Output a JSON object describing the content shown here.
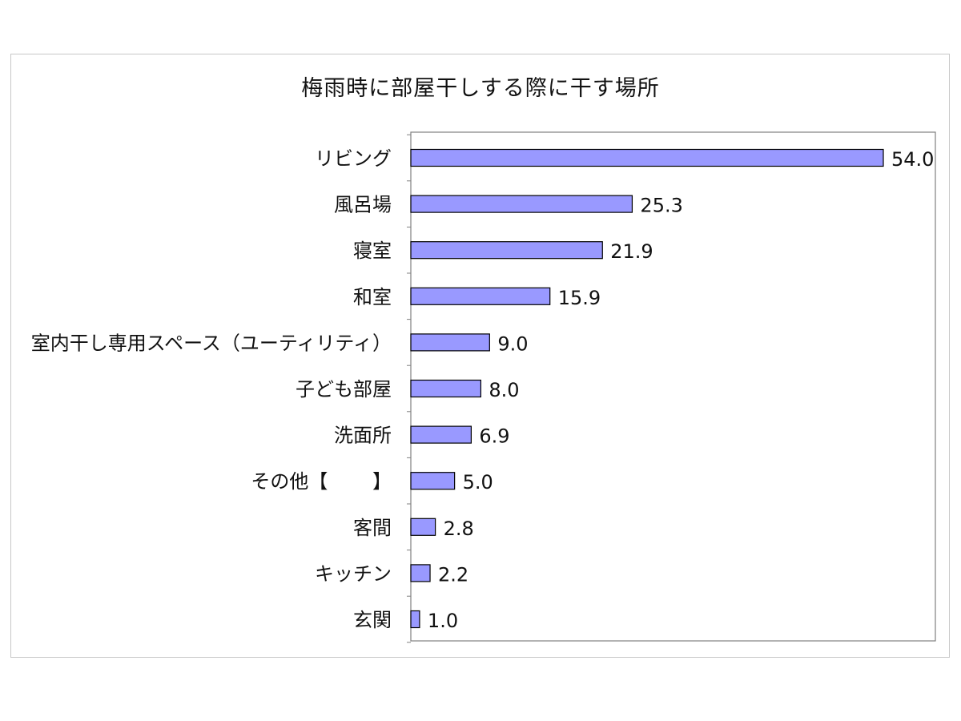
{
  "chart_data": {
    "type": "bar",
    "orientation": "horizontal",
    "title": "梅雨時に部屋干しする際に干す場所",
    "categories": [
      "リビング",
      "風呂場",
      "寝室",
      "和室",
      "室内干し専用スペース（ユーティリティ）",
      "子ども部屋",
      "洗面所",
      "その他【　　 】",
      "客間",
      "キッチン",
      "玄関"
    ],
    "values": [
      54.0,
      25.3,
      21.9,
      15.9,
      9.0,
      8.0,
      6.9,
      5.0,
      2.8,
      2.2,
      1.0
    ],
    "value_labels": [
      "54.0",
      "25.3",
      "21.9",
      "15.9",
      "9.0",
      "8.0",
      "6.9",
      "5.0",
      "2.8",
      "2.2",
      "1.0"
    ],
    "xlim": [
      0,
      60
    ],
    "xlabel": "",
    "ylabel": "",
    "grid": false,
    "legend": "none",
    "bar_color": "#9999ff",
    "bar_edge_color": "#000000"
  }
}
